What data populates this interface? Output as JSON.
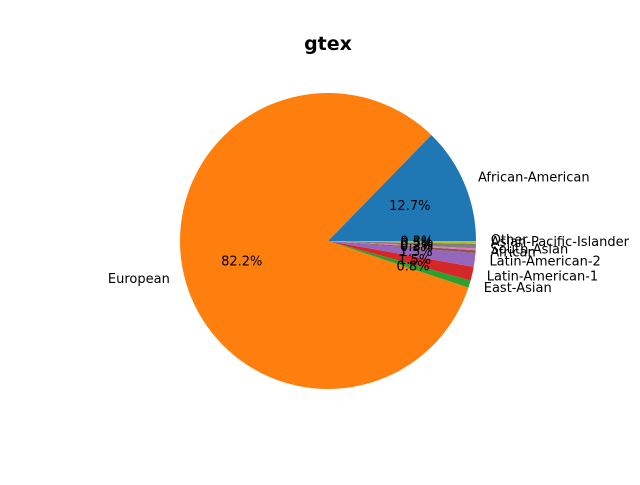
{
  "chart_data": {
    "type": "pie",
    "title": "gtex",
    "slices": [
      {
        "label": "African-American",
        "value": 12.7,
        "pct_label": "12.7%",
        "color": "#1f77b4"
      },
      {
        "label": "European",
        "value": 82.2,
        "pct_label": "82.2%",
        "color": "#ff7f0e"
      },
      {
        "label": "East-Asian",
        "value": 0.8,
        "pct_label": "0.8%",
        "color": "#2ca02c"
      },
      {
        "label": "Latin-American-1",
        "value": 1.5,
        "pct_label": "1.5%",
        "color": "#d62728"
      },
      {
        "label": "Latin-American-2",
        "value": 1.5,
        "pct_label": "1.5%",
        "color": "#9467bd"
      },
      {
        "label": "African",
        "value": 0.3,
        "pct_label": "0.3%",
        "color": "#8c564b"
      },
      {
        "label": "South-Asian",
        "value": 0.2,
        "pct_label": "0.2%",
        "color": "#e377c2"
      },
      {
        "label": "Other",
        "value": 0.5,
        "pct_label": "0.5%",
        "color": "#7f7f7f"
      },
      {
        "label": "Asian-Pacific-Islander",
        "value": 0.3,
        "pct_label": "0.3%",
        "color": "#bcbd22"
      }
    ],
    "start_angle_deg": 0,
    "direction": "counterclockwise",
    "legend": "none"
  }
}
